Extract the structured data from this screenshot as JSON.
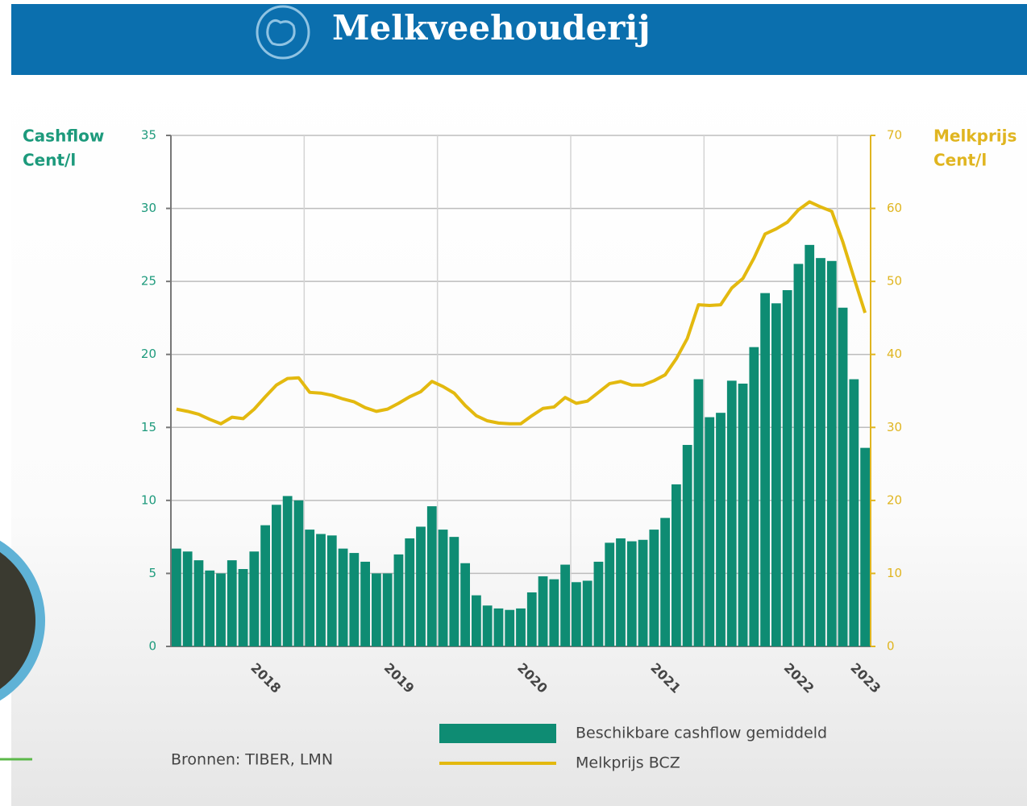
{
  "header": {
    "title": "Melkveehouderij"
  },
  "chart_data": {
    "type": "bar-line",
    "y_label": [
      "Cashflow",
      "Cent/l"
    ],
    "y2_label": [
      "Melkprijs",
      "Cent/l"
    ],
    "categories": [
      null,
      null,
      null,
      null,
      null,
      null,
      null,
      null,
      "2018",
      null,
      null,
      null,
      null,
      null,
      null,
      null,
      null,
      null,
      null,
      null,
      "2019",
      null,
      null,
      null,
      null,
      null,
      null,
      null,
      null,
      null,
      null,
      null,
      "2020",
      null,
      null,
      null,
      null,
      null,
      null,
      null,
      null,
      null,
      null,
      null,
      "2021",
      null,
      null,
      null,
      null,
      null,
      null,
      null,
      null,
      null,
      null,
      null,
      "2022",
      null,
      null,
      null,
      null,
      null,
      "2023"
    ],
    "series": [
      {
        "name": "Beschikbare cashflow gemiddeld",
        "type": "bar",
        "axis": "y",
        "color": "#0e8c73",
        "values": [
          6.7,
          6.5,
          5.9,
          5.2,
          5.0,
          5.9,
          5.3,
          6.5,
          8.3,
          9.7,
          10.3,
          10.0,
          8.0,
          7.7,
          7.6,
          6.7,
          6.4,
          5.8,
          5.0,
          5.0,
          6.3,
          7.4,
          8.2,
          9.6,
          8.0,
          7.5,
          5.7,
          3.5,
          2.8,
          2.6,
          2.5,
          2.6,
          3.7,
          4.8,
          4.6,
          5.6,
          4.4,
          4.5,
          5.8,
          7.1,
          7.4,
          7.2,
          7.3,
          8.0,
          8.8,
          11.1,
          13.8,
          18.3,
          15.7,
          16.0,
          18.2,
          18.0,
          20.5,
          24.2,
          23.5,
          24.4,
          26.2,
          27.5,
          26.6,
          26.4,
          23.2,
          18.3,
          13.6
        ]
      },
      {
        "name": "Melkprijs BCZ",
        "type": "line",
        "axis": "y2",
        "color": "#e3b90f",
        "values": [
          32.5,
          32.2,
          31.8,
          31.1,
          30.5,
          31.4,
          31.2,
          32.5,
          34.2,
          35.8,
          36.7,
          36.8,
          34.8,
          34.7,
          34.4,
          33.9,
          33.5,
          32.7,
          32.2,
          32.5,
          33.3,
          34.2,
          34.9,
          36.3,
          35.6,
          34.7,
          33.0,
          31.6,
          30.9,
          30.6,
          30.5,
          30.5,
          31.6,
          32.6,
          32.8,
          34.1,
          33.3,
          33.6,
          34.8,
          36.0,
          36.3,
          35.8,
          35.8,
          36.4,
          37.2,
          39.4,
          42.2,
          46.8,
          46.7,
          46.8,
          49.1,
          50.4,
          53.2,
          56.5,
          57.2,
          58.1,
          59.8,
          60.9,
          60.2,
          59.6,
          55.4,
          50.5,
          45.7
        ]
      }
    ],
    "ylim": [
      0,
      35
    ],
    "yticks": [
      0,
      5,
      10,
      15,
      20,
      25,
      30,
      35
    ],
    "y2lim": [
      0,
      70
    ],
    "y2ticks": [
      0,
      10,
      20,
      30,
      40,
      50,
      60,
      70
    ],
    "grid": true,
    "source": "Bronnen: TIBER, LMN"
  }
}
